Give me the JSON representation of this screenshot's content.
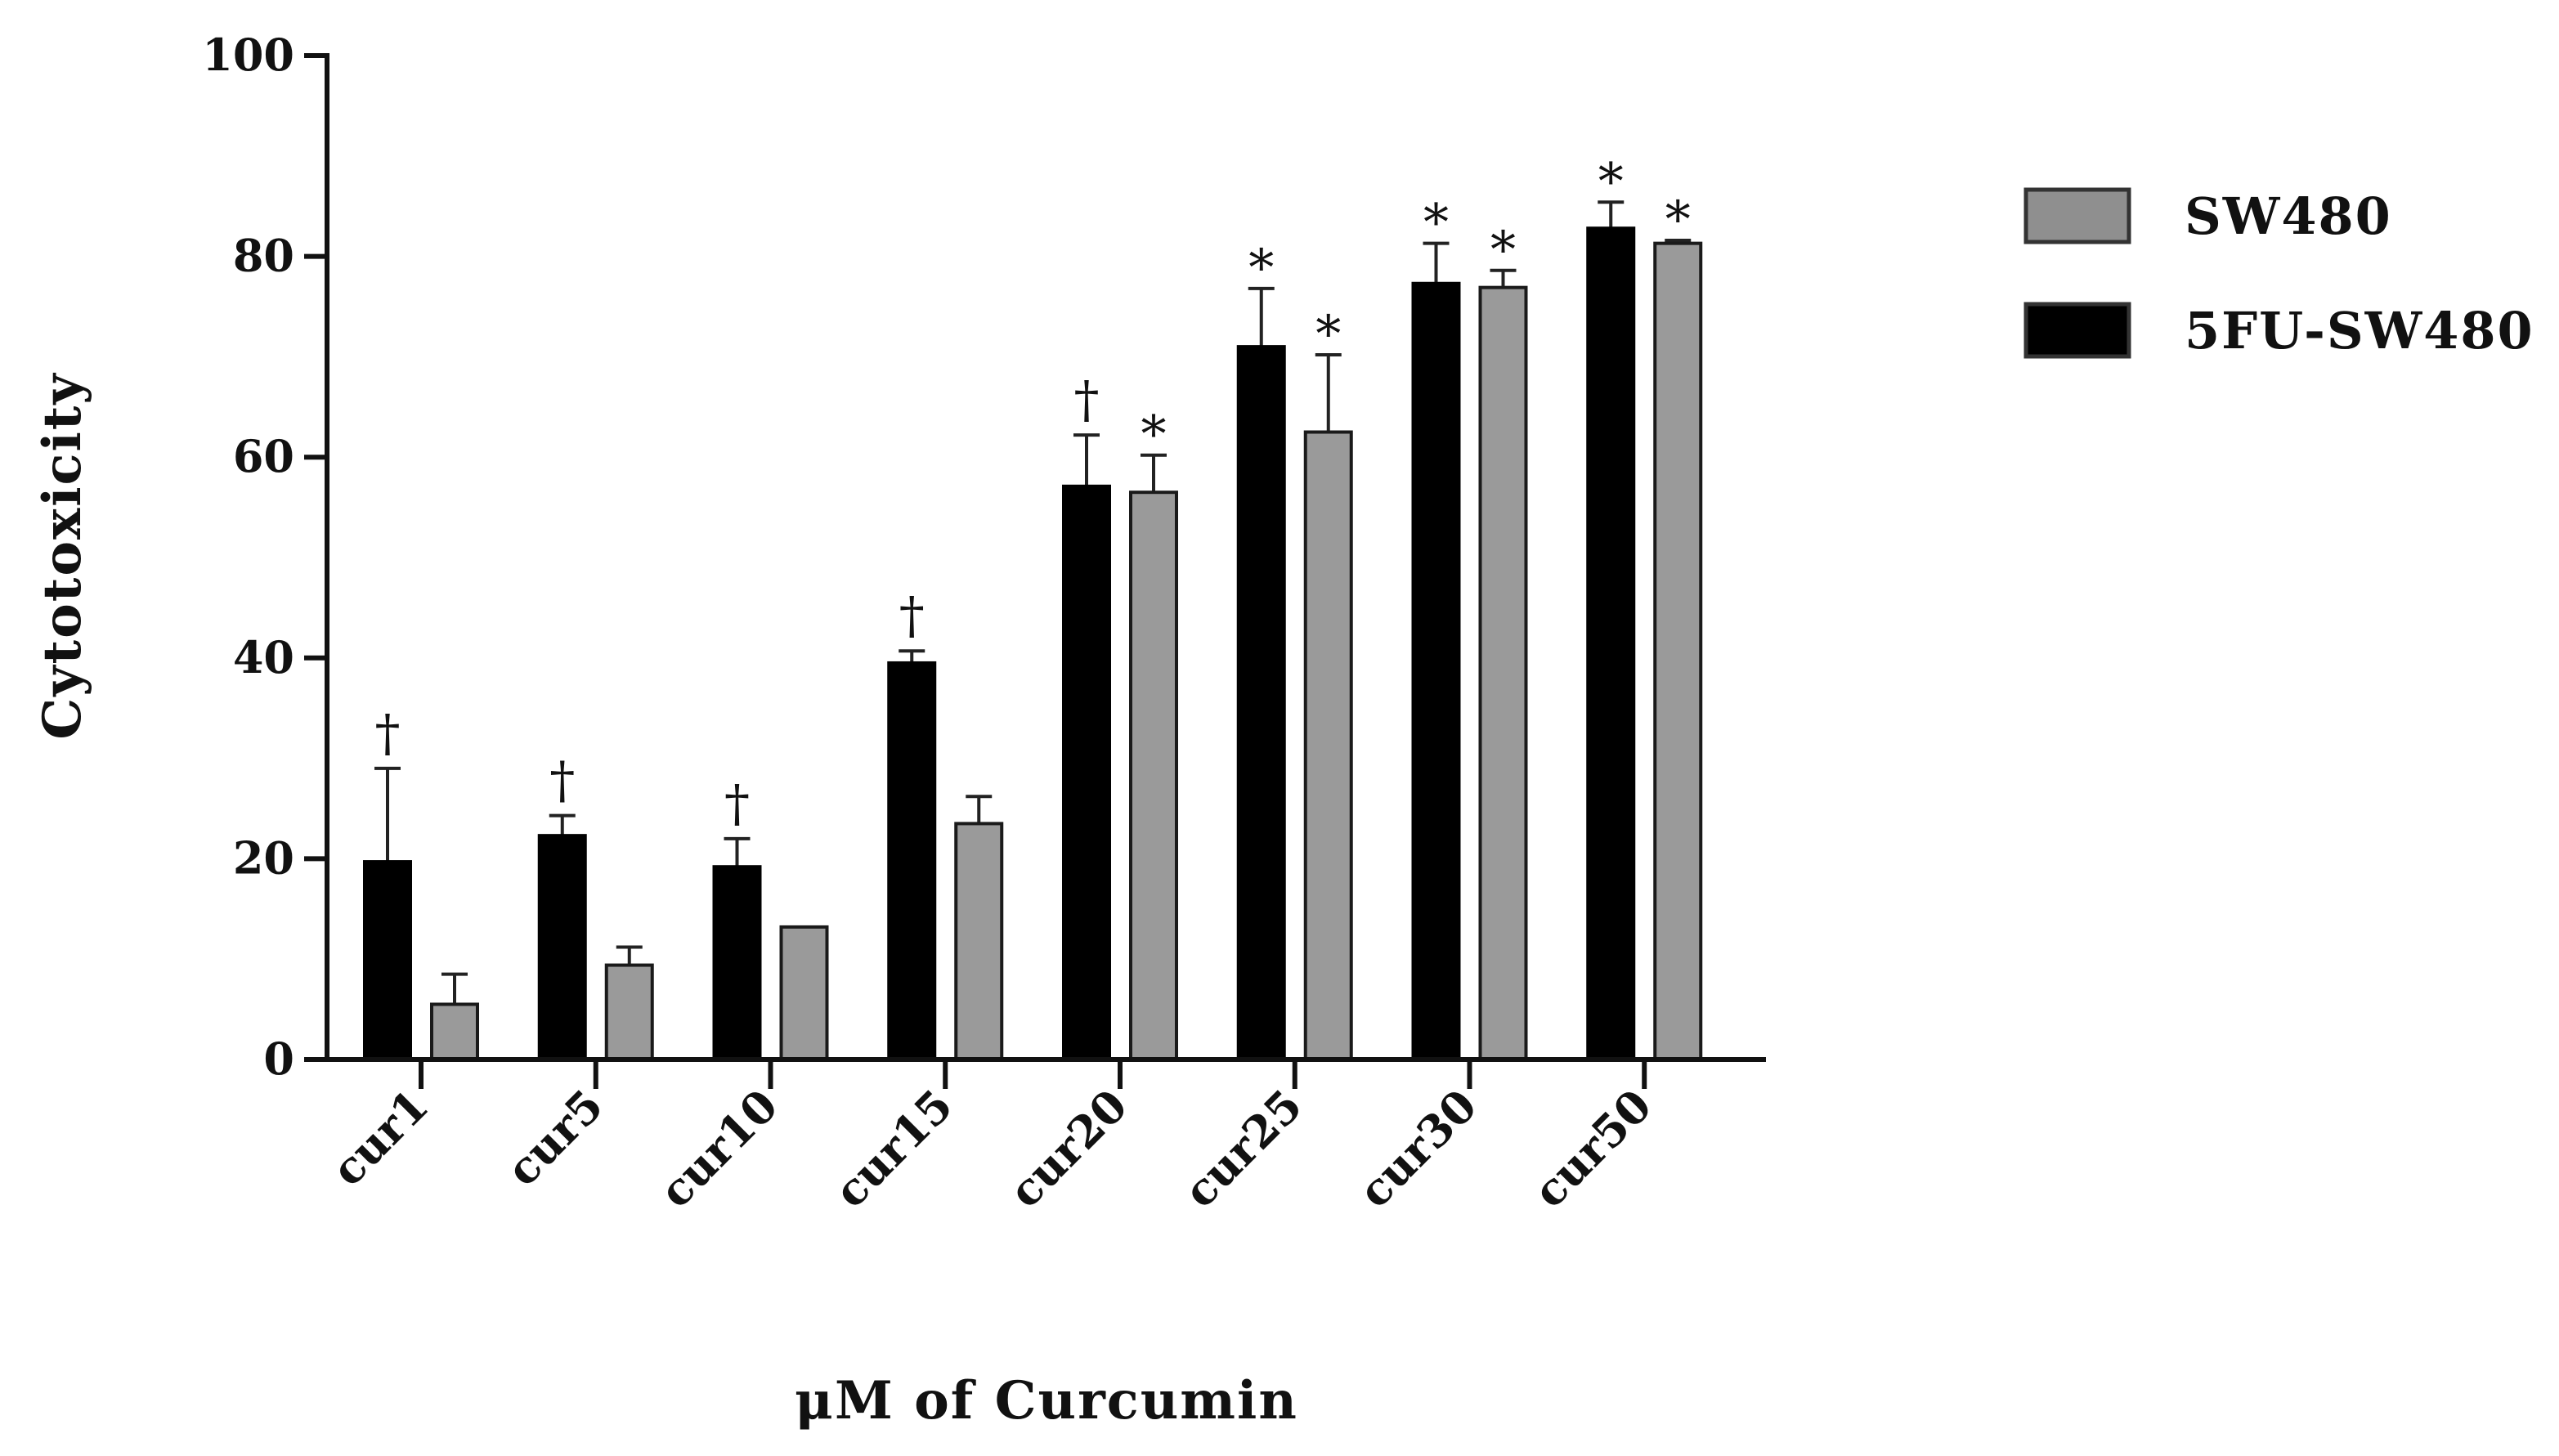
{
  "chart_data": {
    "type": "bar",
    "title": "",
    "xlabel": "μM of Curcumin",
    "ylabel": "Cytotoxicity",
    "ylim": [
      0,
      100
    ],
    "yticks": [
      0,
      20,
      40,
      60,
      80,
      100
    ],
    "grid": false,
    "legend_position": "right",
    "categories": [
      "cur1",
      "cur5",
      "cur10",
      "cur15",
      "cur20",
      "cur25",
      "cur30",
      "cur50"
    ],
    "series": [
      {
        "name": "5FU-SW480",
        "color": "#000000",
        "values": [
          19.7,
          22.3,
          19.2,
          39.5,
          57.1,
          71.0,
          77.3,
          82.8
        ],
        "error": [
          9.3,
          2.0,
          2.8,
          1.2,
          5.1,
          5.8,
          4.0,
          2.6
        ],
        "markers": [
          "†",
          "†",
          "†",
          "†",
          "†",
          "*",
          "*",
          "*"
        ]
      },
      {
        "name": "SW480",
        "color": "#9a9a9a",
        "values": [
          5.5,
          9.4,
          13.2,
          23.5,
          56.5,
          62.5,
          76.9,
          81.3
        ],
        "error": [
          3.0,
          1.8,
          0.0,
          2.7,
          3.7,
          7.7,
          1.7,
          0.3
        ],
        "markers": [
          "",
          "",
          "",
          "",
          "*",
          "*",
          "*",
          "*"
        ]
      }
    ],
    "legend": [
      "SW480",
      "5FU-SW480"
    ]
  }
}
